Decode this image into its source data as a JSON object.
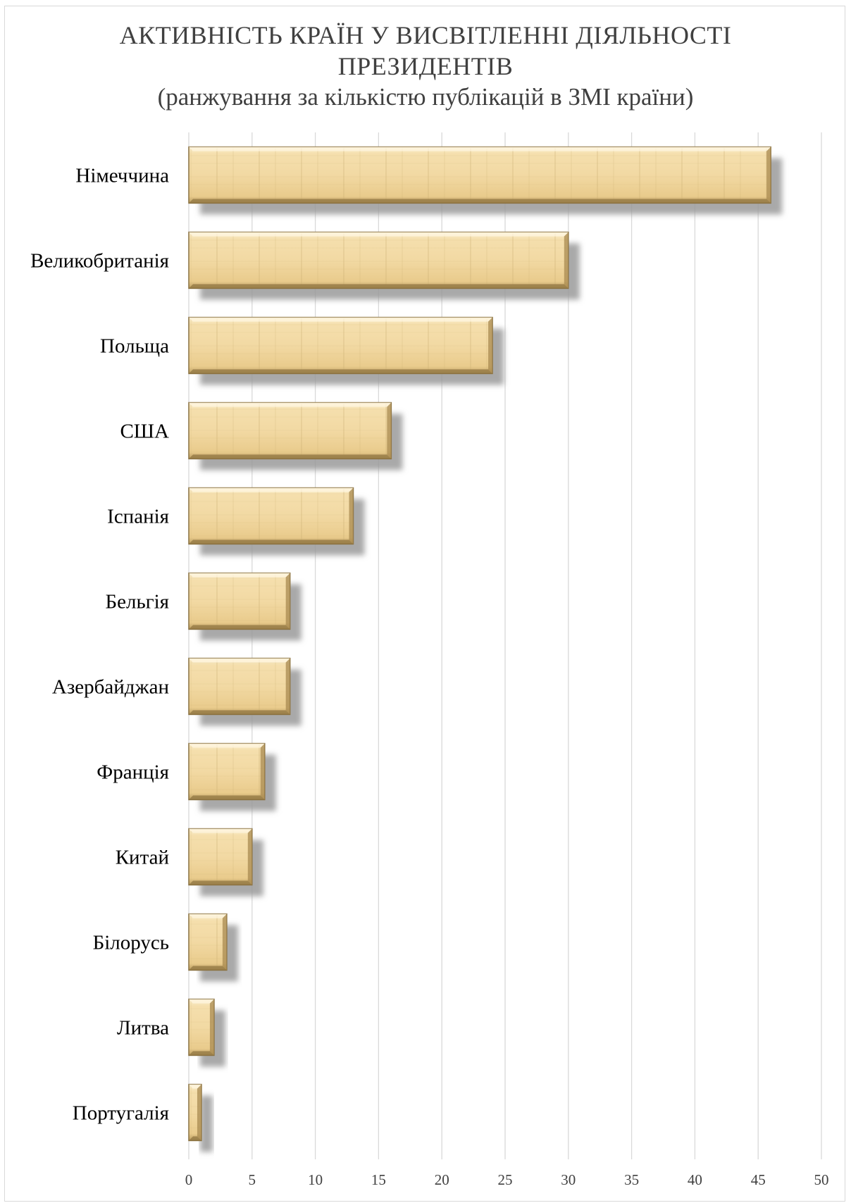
{
  "chart_data": {
    "type": "bar",
    "orientation": "horizontal",
    "title": "АКТИВНІСТЬ КРАЇН У ВИСВІТЛЕННІ ДІЯЛЬНОСТІ ПРЕЗИДЕНТІВ",
    "subtitle": "(ранжування за кількістю публікацій в ЗМІ країни)",
    "categories": [
      "Німеччина",
      "Великобританія",
      "Польща",
      "США",
      "Іспанія",
      "Бельгія",
      "Азербайджан",
      "Франція",
      "Китай",
      "Білорусь",
      "Литва",
      "Португалія"
    ],
    "values": [
      46,
      30,
      24,
      16,
      13,
      8,
      8,
      6,
      5,
      3,
      2,
      1
    ],
    "xlim": [
      0,
      50
    ],
    "xticks": [
      0,
      5,
      10,
      15,
      20,
      25,
      30,
      35,
      40,
      45,
      50
    ],
    "grid": true,
    "bar_color": "#f0d7a0",
    "bar_edge_color": "#8a7242",
    "shadow_color": "#9a9a9a"
  },
  "title_lines": [
    "АКТИВНІСТЬ КРАЇН У ВИСВІТЛЕННІ ДІЯЛЬНОСТІ",
    "ПРЕЗИДЕНТІВ"
  ]
}
